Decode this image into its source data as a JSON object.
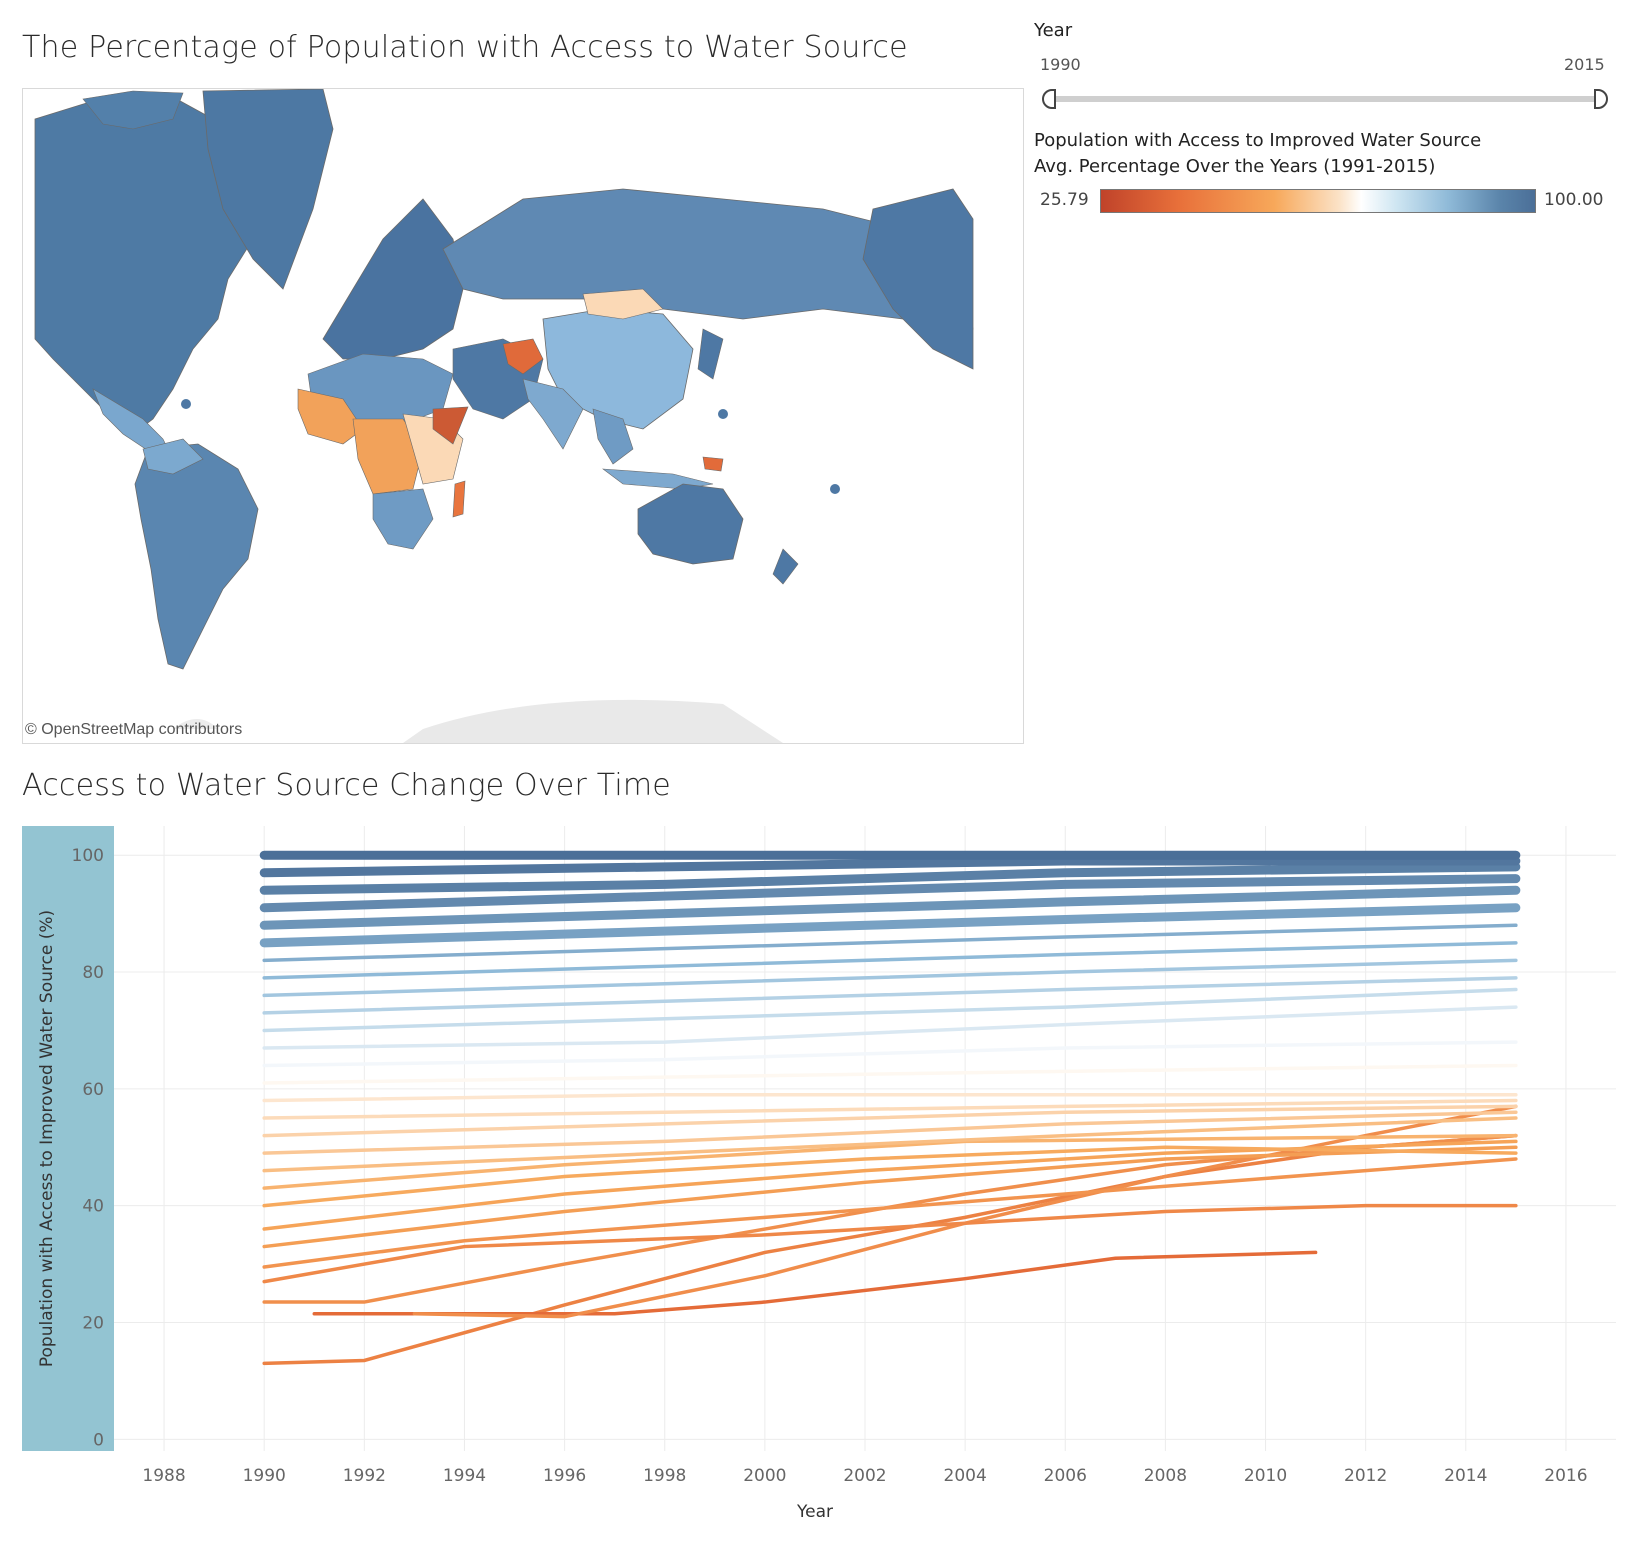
{
  "map": {
    "title": "The Percentage of Population with Access to Water Source",
    "credit": "© OpenStreetMap contributors"
  },
  "filter": {
    "label": "Year",
    "min_label": "1990",
    "max_label": "2015",
    "selected_range": [
      1990,
      2015
    ]
  },
  "legend": {
    "title_line1": "Population with Access to Improved Water Source",
    "title_line2": "Avg. Percentage Over the Years (1991-2015)",
    "min_label": "25.79",
    "max_label": "100.00",
    "colors": [
      "#c0432a",
      "#e8703a",
      "#f7a85a",
      "#ffffff",
      "#8fbad8",
      "#4b6f98"
    ]
  },
  "chart_data": {
    "type": "line",
    "title": "Access to Water Source Change Over Time",
    "xlabel": "Year",
    "ylabel": "Population with Access to Improved Water Source (%)",
    "xlim": [
      1987,
      2017
    ],
    "ylim": [
      -2,
      105
    ],
    "x_ticks": [
      1988,
      1990,
      1992,
      1994,
      1996,
      1998,
      2000,
      2002,
      2004,
      2006,
      2008,
      2010,
      2012,
      2014,
      2016
    ],
    "y_ticks": [
      0,
      20,
      40,
      60,
      80,
      100
    ],
    "grid": true,
    "series": [
      {
        "values": [
          [
            1990,
            13
          ],
          [
            1992,
            13.5
          ],
          [
            1996,
            23
          ],
          [
            2000,
            32
          ],
          [
            2004,
            38
          ],
          [
            2008,
            45
          ],
          [
            2012,
            50
          ],
          [
            2015,
            52
          ]
        ]
      },
      {
        "values": [
          [
            1990,
            23.5
          ],
          [
            1992,
            23.5
          ],
          [
            1996,
            30
          ],
          [
            2000,
            36
          ],
          [
            2004,
            42
          ],
          [
            2008,
            47
          ],
          [
            2012,
            50
          ],
          [
            2015,
            52
          ]
        ]
      },
      {
        "values": [
          [
            1991,
            21.5
          ],
          [
            1997,
            21.5
          ],
          [
            2000,
            23.5
          ],
          [
            2004,
            27.5
          ],
          [
            2007,
            31
          ],
          [
            2011,
            32
          ]
        ]
      },
      {
        "values": [
          [
            1993,
            21.5
          ],
          [
            1996,
            21
          ],
          [
            2000,
            28
          ],
          [
            2004,
            37
          ],
          [
            2008,
            45
          ],
          [
            2012,
            52
          ],
          [
            2015,
            57
          ]
        ]
      },
      {
        "values": [
          [
            1990,
            27
          ],
          [
            1994,
            33
          ],
          [
            2000,
            35
          ],
          [
            2004,
            37
          ],
          [
            2008,
            39
          ],
          [
            2012,
            40
          ],
          [
            2015,
            40
          ]
        ]
      },
      {
        "values": [
          [
            1990,
            29.5
          ],
          [
            1994,
            34
          ],
          [
            2000,
            38
          ],
          [
            2006,
            42
          ],
          [
            2012,
            46
          ],
          [
            2015,
            48
          ]
        ]
      },
      {
        "values": [
          [
            1990,
            33
          ],
          [
            1996,
            39
          ],
          [
            2002,
            44
          ],
          [
            2008,
            48
          ],
          [
            2015,
            50
          ]
        ]
      },
      {
        "values": [
          [
            1990,
            36
          ],
          [
            1996,
            42
          ],
          [
            2002,
            46
          ],
          [
            2008,
            49
          ],
          [
            2015,
            51
          ]
        ]
      },
      {
        "values": [
          [
            1990,
            40
          ],
          [
            1996,
            45
          ],
          [
            2002,
            48
          ],
          [
            2008,
            50
          ],
          [
            2015,
            49
          ]
        ]
      },
      {
        "values": [
          [
            1990,
            43
          ],
          [
            1996,
            47
          ],
          [
            2004,
            51
          ],
          [
            2015,
            52
          ]
        ]
      },
      {
        "values": [
          [
            1990,
            46
          ],
          [
            1998,
            49
          ],
          [
            2006,
            52
          ],
          [
            2015,
            55
          ]
        ]
      },
      {
        "values": [
          [
            1990,
            49
          ],
          [
            1998,
            51
          ],
          [
            2006,
            54
          ],
          [
            2015,
            56
          ]
        ]
      },
      {
        "values": [
          [
            1990,
            52
          ],
          [
            1998,
            54
          ],
          [
            2006,
            56
          ],
          [
            2015,
            57
          ]
        ]
      },
      {
        "values": [
          [
            1990,
            55
          ],
          [
            1998,
            56
          ],
          [
            2006,
            57
          ],
          [
            2015,
            58
          ]
        ]
      },
      {
        "values": [
          [
            1990,
            58
          ],
          [
            1998,
            59
          ],
          [
            2006,
            59
          ],
          [
            2015,
            59
          ]
        ]
      },
      {
        "values": [
          [
            1990,
            61
          ],
          [
            1998,
            62
          ],
          [
            2006,
            63
          ],
          [
            2015,
            64
          ]
        ]
      },
      {
        "values": [
          [
            1990,
            64
          ],
          [
            1998,
            65
          ],
          [
            2006,
            67
          ],
          [
            2015,
            68
          ]
        ]
      },
      {
        "values": [
          [
            1990,
            67
          ],
          [
            1998,
            68
          ],
          [
            2006,
            71
          ],
          [
            2015,
            74
          ]
        ]
      },
      {
        "values": [
          [
            1990,
            70
          ],
          [
            1998,
            72
          ],
          [
            2006,
            74
          ],
          [
            2015,
            77
          ]
        ]
      },
      {
        "values": [
          [
            1990,
            73
          ],
          [
            1998,
            75
          ],
          [
            2006,
            77
          ],
          [
            2015,
            79
          ]
        ]
      },
      {
        "values": [
          [
            1990,
            76
          ],
          [
            1998,
            78
          ],
          [
            2006,
            80
          ],
          [
            2015,
            82
          ]
        ]
      },
      {
        "values": [
          [
            1990,
            79
          ],
          [
            1998,
            81
          ],
          [
            2006,
            83
          ],
          [
            2015,
            85
          ]
        ]
      },
      {
        "values": [
          [
            1990,
            82
          ],
          [
            1998,
            84
          ],
          [
            2006,
            86
          ],
          [
            2015,
            88
          ]
        ]
      },
      {
        "values": [
          [
            1990,
            85
          ],
          [
            1998,
            87
          ],
          [
            2006,
            89
          ],
          [
            2015,
            91
          ]
        ]
      },
      {
        "values": [
          [
            1990,
            88
          ],
          [
            1998,
            90
          ],
          [
            2006,
            92
          ],
          [
            2015,
            94
          ]
        ]
      },
      {
        "values": [
          [
            1990,
            91
          ],
          [
            1998,
            93
          ],
          [
            2006,
            95
          ],
          [
            2015,
            96
          ]
        ]
      },
      {
        "values": [
          [
            1990,
            94
          ],
          [
            1998,
            95
          ],
          [
            2006,
            97
          ],
          [
            2015,
            98
          ]
        ]
      },
      {
        "values": [
          [
            1990,
            97
          ],
          [
            1998,
            98
          ],
          [
            2006,
            99
          ],
          [
            2015,
            99
          ]
        ]
      },
      {
        "values": [
          [
            1990,
            100
          ],
          [
            2015,
            100
          ]
        ]
      }
    ]
  }
}
